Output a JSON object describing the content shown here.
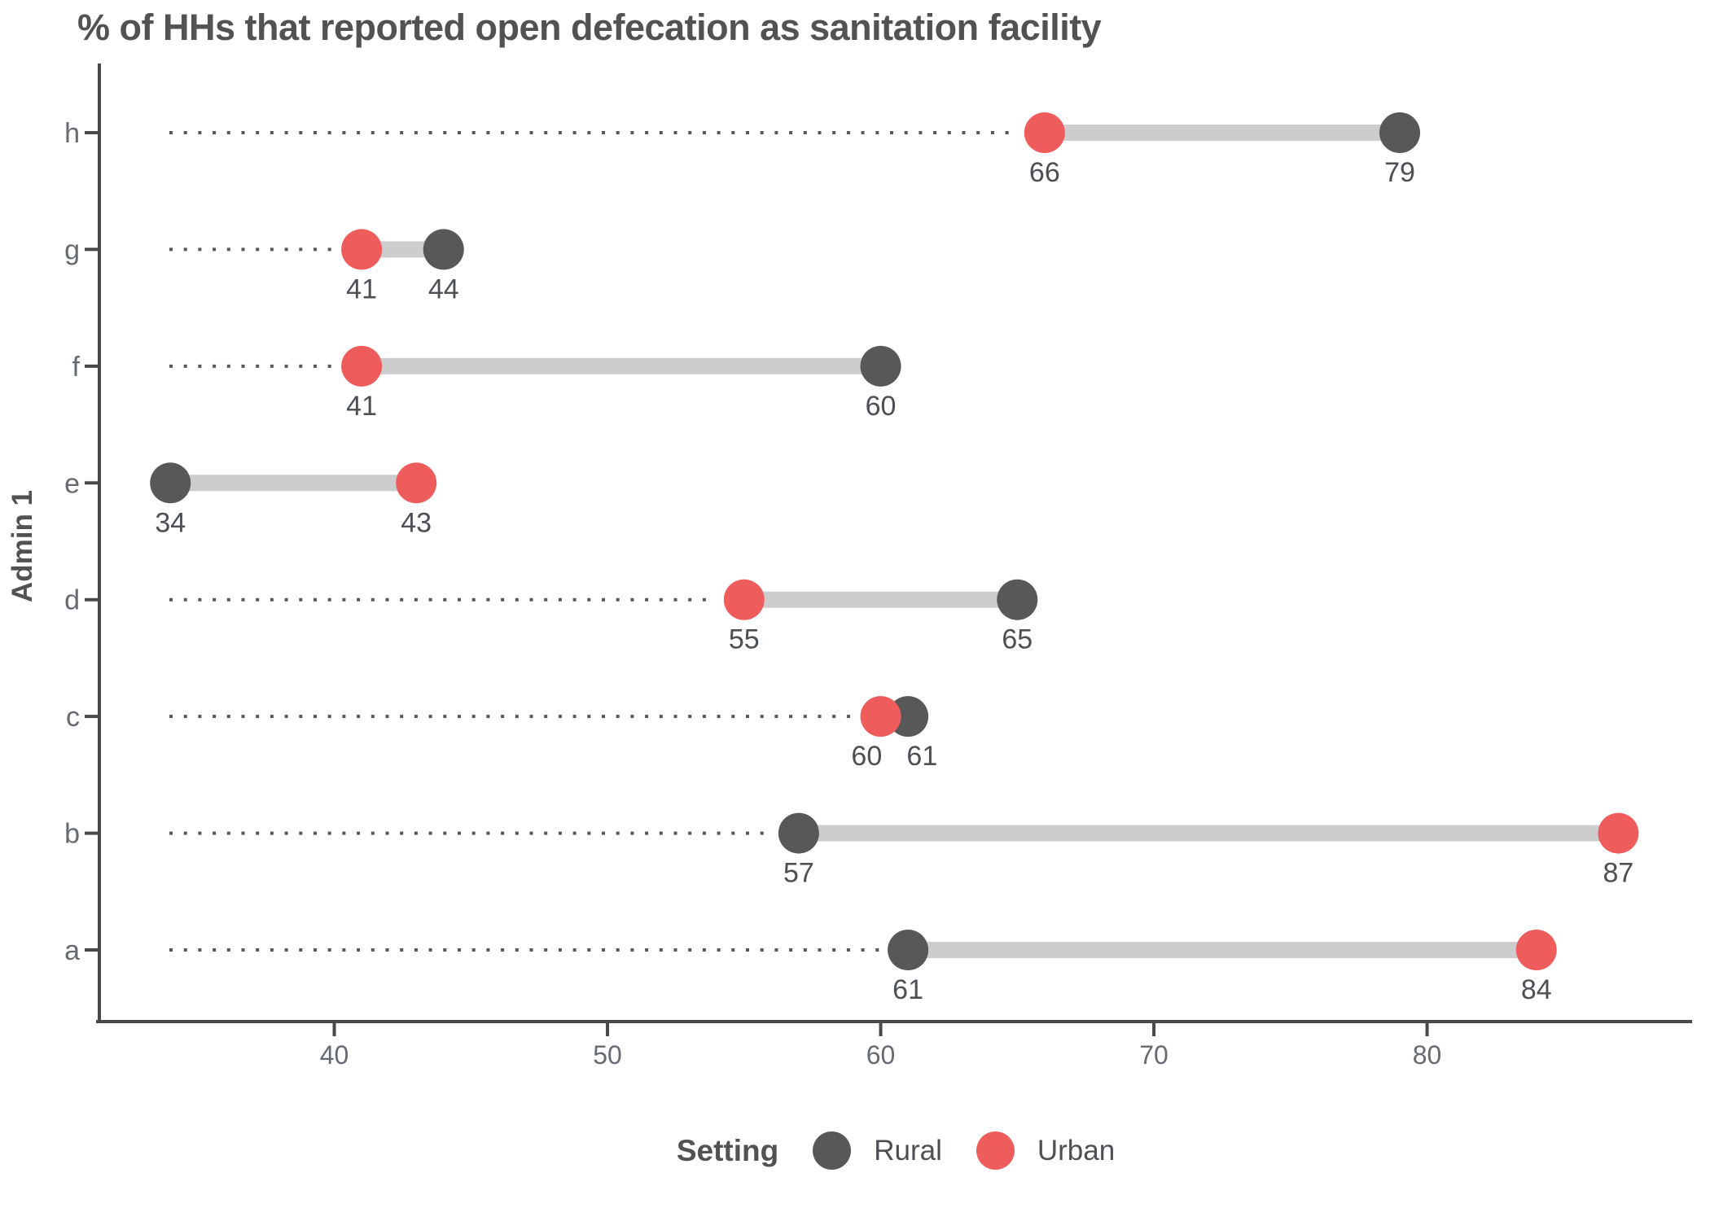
{
  "chart_data": {
    "type": "dumbbell",
    "title": "% of HHs that reported open defecation as sanitation facility",
    "xlabel": "",
    "ylabel": "Admin 1",
    "categories": [
      "h",
      "g",
      "f",
      "e",
      "d",
      "c",
      "b",
      "a"
    ],
    "series": [
      {
        "name": "Rural",
        "color": "#58585A",
        "values": [
          79,
          44,
          60,
          34,
          65,
          61,
          57,
          61
        ]
      },
      {
        "name": "Urban",
        "color": "#EE5C5C",
        "values": [
          66,
          41,
          41,
          43,
          55,
          60,
          87,
          84
        ]
      }
    ],
    "point_labels": {
      "Rural": [
        "79",
        "44",
        "60",
        "34",
        "65",
        "61",
        "57",
        "61"
      ],
      "Urban": [
        "66",
        "41",
        "41",
        "43",
        "55",
        "60",
        "87",
        "84"
      ]
    },
    "x_tick_labels": [
      "40",
      "50",
      "60",
      "70",
      "80"
    ],
    "x_tick_values": [
      40,
      50,
      60,
      70,
      80
    ],
    "x_domain": [
      31.4,
      89.7
    ],
    "grid": false,
    "legend": {
      "title": "Setting",
      "position": "bottom"
    },
    "styles": {
      "connector_color": "#CDCDCF",
      "leader_color": "#57585A",
      "axis_color": "#48494B",
      "tick_label_color": "#666B72",
      "value_label_color": "#4C4F54",
      "background": "#FFFFFF"
    }
  }
}
